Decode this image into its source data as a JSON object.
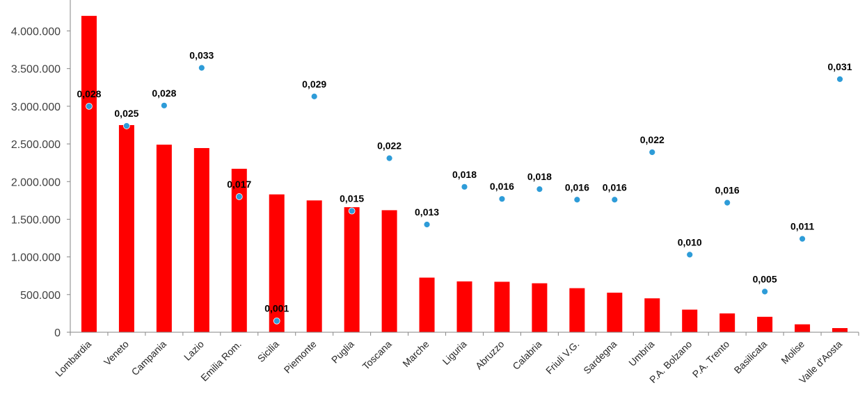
{
  "chart_data": {
    "type": "bar",
    "title": "",
    "xlabel": "",
    "ylabel": "",
    "ylim": [
      0,
      4400000
    ],
    "yticks": [
      0,
      500000,
      1000000,
      1500000,
      2000000,
      2500000,
      3000000,
      3500000,
      4000000
    ],
    "ytick_labels": [
      "0",
      "500.000",
      "1.000.000",
      "1.500.000",
      "2.000.000",
      "2.500.000",
      "3.000.000",
      "3.500.000",
      "4.000.000"
    ],
    "categories": [
      "Lombardia",
      "Veneto",
      "Campania",
      "Lazio",
      "Emilia Rom.",
      "Sicilia",
      "Piemonte",
      "Puglia",
      "Toscana",
      "Marche",
      "Liguria",
      "Abruzzo",
      "Calabria",
      "Friuli V.G.",
      "Sardegna",
      "Umbria",
      "P.A. Bolzano",
      "P.A. Trento",
      "Basilicata",
      "Molise",
      "Valle d'Aosta"
    ],
    "series": [
      {
        "type": "bar",
        "color": "#ff0000",
        "values": [
          4200000,
          2750000,
          2490000,
          2445000,
          2170000,
          1830000,
          1750000,
          1660000,
          1620000,
          725000,
          675000,
          670000,
          650000,
          585000,
          525000,
          450000,
          300000,
          250000,
          205000,
          105000,
          55000
        ]
      },
      {
        "type": "scatter",
        "color": "#2e9cd8",
        "values": [
          0.028,
          0.025,
          0.028,
          0.033,
          0.017,
          0.001,
          0.029,
          0.015,
          0.022,
          0.013,
          0.018,
          0.016,
          0.018,
          0.016,
          0.016,
          0.022,
          0.01,
          0.016,
          0.005,
          0.011,
          0.031
        ],
        "labels": [
          "0,028",
          "0,025",
          "0,028",
          "0,033",
          "0,017",
          "0,001",
          "0,029",
          "0,015",
          "0,022",
          "0,013",
          "0,018",
          "0,016",
          "0,018",
          "0,016",
          "0,016",
          "0,022",
          "0,010",
          "0,016",
          "0,005",
          "0,011",
          "0,031"
        ],
        "point_positions": [
          3000000,
          2740000,
          3010000,
          3510000,
          1800000,
          150000,
          3130000,
          1610000,
          2310000,
          1430000,
          1930000,
          1770000,
          1900000,
          1760000,
          1760000,
          2390000,
          1030000,
          1720000,
          540000,
          1240000,
          3360000
        ]
      }
    ],
    "grid": false,
    "legend": "none"
  }
}
